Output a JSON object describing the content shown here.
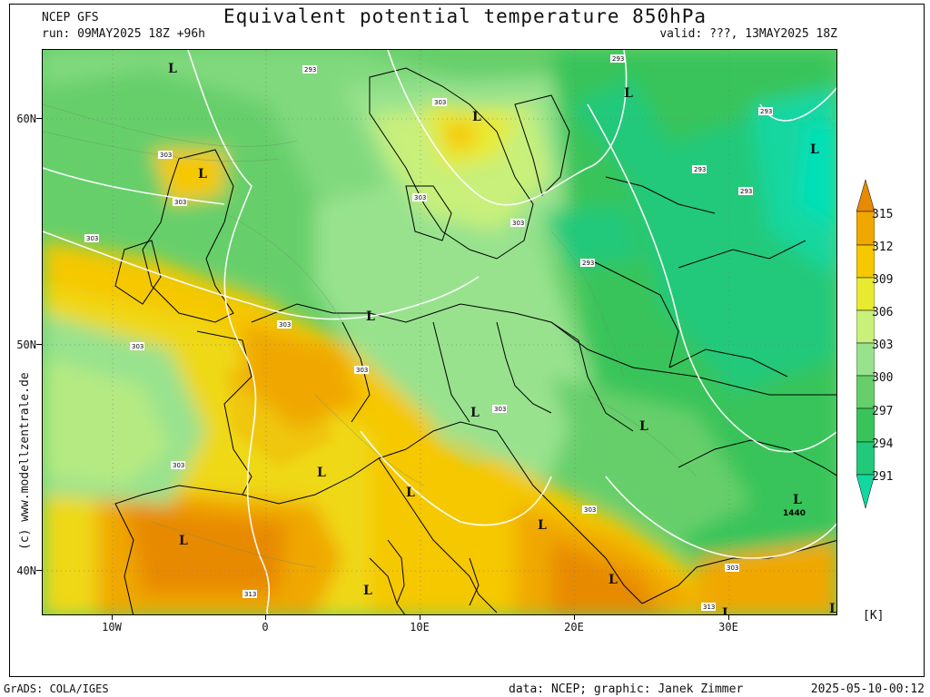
{
  "header": {
    "title": "Equivalent potential temperature 850hPa",
    "model": "NCEP GFS",
    "run": "run: 09MAY2025 18Z +96h",
    "valid": "valid: ???, 13MAY2025 18Z"
  },
  "footer": {
    "left": "GrADS: COLA/IGES",
    "middle": "data: NCEP; graphic: Janek Zimmer",
    "right": "2025-05-10-00:12"
  },
  "credit": "(c) www.modellzentrale.de",
  "axes": {
    "lat_labels": [
      "60N",
      "50N",
      "40N"
    ],
    "lon_labels": [
      "10W",
      "0",
      "10E",
      "20E",
      "30E"
    ]
  },
  "colorbar": {
    "unit": "[K]",
    "levels": [
      "315",
      "312",
      "309",
      "306",
      "303",
      "300",
      "297",
      "294",
      "291"
    ],
    "colors": {
      "lt_288": "#00e0b8",
      "288_291": "#14d7a0",
      "291_294": "#22c97a",
      "294_297": "#38c45a",
      "297_300": "#66cf6a",
      "300_303": "#98e28e",
      "303_306": "#c8f07a",
      "306_309": "#e8ea30",
      "309_312": "#f5c800",
      "312_315": "#f0a800",
      "gt_315": "#e88a00"
    }
  },
  "map": {
    "lows": [
      "L",
      "L",
      "L",
      "L",
      "L",
      "L",
      "L",
      "L",
      "L",
      "L",
      "L",
      "L",
      "L",
      "L",
      "L",
      "L",
      "L"
    ],
    "isoline_labels": [
      "293",
      "293",
      "303",
      "303",
      "303",
      "303",
      "303",
      "303",
      "303",
      "303",
      "303",
      "303",
      "303",
      "303",
      "293",
      "293",
      "293",
      "293",
      "313",
      "313",
      "303"
    ],
    "station_label": "1440"
  }
}
